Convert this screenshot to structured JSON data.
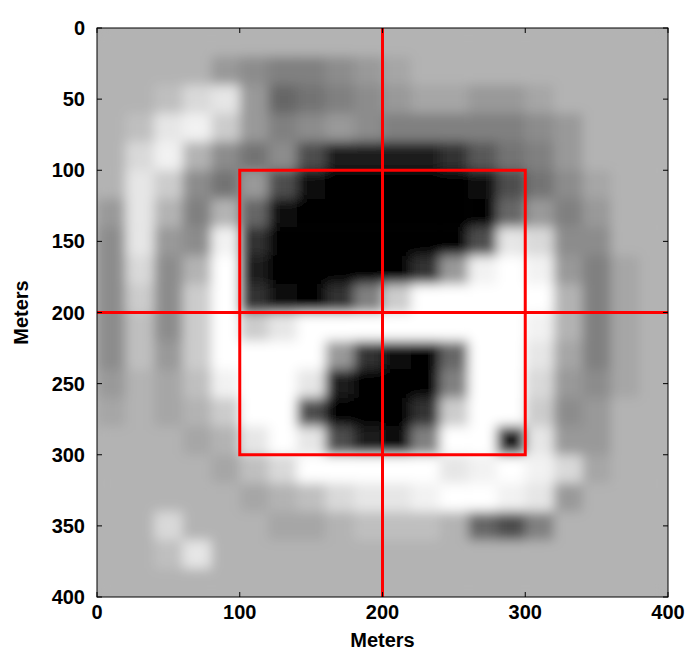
{
  "chart_data": {
    "type": "heatmap",
    "x_label": "Meters",
    "y_label": "Meters",
    "xlim": [
      0,
      400
    ],
    "ylim": [
      400,
      0
    ],
    "xticks": [
      0,
      100,
      200,
      300,
      400
    ],
    "yticks": [
      0,
      50,
      100,
      150,
      200,
      250,
      300,
      350,
      400
    ],
    "color": "gray",
    "color_range": [
      0,
      1
    ],
    "cells": [
      [
        0.7,
        0.7,
        0.7,
        0.7,
        0.7,
        0.7,
        0.7,
        0.7,
        0.7,
        0.7,
        0.7,
        0.7,
        0.7,
        0.7,
        0.7,
        0.7,
        0.7,
        0.7,
        0.7,
        0.7
      ],
      [
        0.7,
        0.7,
        0.7,
        0.7,
        0.6,
        0.55,
        0.5,
        0.5,
        0.55,
        0.6,
        0.65,
        0.7,
        0.7,
        0.7,
        0.7,
        0.7,
        0.7,
        0.7,
        0.7,
        0.7
      ],
      [
        0.7,
        0.7,
        0.75,
        0.85,
        0.9,
        0.6,
        0.4,
        0.45,
        0.5,
        0.55,
        0.6,
        0.65,
        0.65,
        0.6,
        0.6,
        0.65,
        0.7,
        0.7,
        0.7,
        0.7
      ],
      [
        0.7,
        0.75,
        0.9,
        0.95,
        0.8,
        0.6,
        0.5,
        0.55,
        0.6,
        0.55,
        0.5,
        0.5,
        0.5,
        0.5,
        0.5,
        0.55,
        0.6,
        0.7,
        0.7,
        0.7
      ],
      [
        0.7,
        0.85,
        0.95,
        0.7,
        0.55,
        0.45,
        0.55,
        0.3,
        0.1,
        0.1,
        0.1,
        0.1,
        0.2,
        0.35,
        0.45,
        0.5,
        0.6,
        0.7,
        0.7,
        0.7
      ],
      [
        0.7,
        0.9,
        0.8,
        0.55,
        0.45,
        0.6,
        0.3,
        0.05,
        0,
        0,
        0,
        0,
        0,
        0.05,
        0.3,
        0.45,
        0.55,
        0.65,
        0.7,
        0.7
      ],
      [
        0.6,
        0.9,
        0.7,
        0.5,
        0.7,
        0.4,
        0.05,
        0,
        0,
        0,
        0,
        0,
        0,
        0,
        0.4,
        0.6,
        0.5,
        0.6,
        0.7,
        0.7
      ],
      [
        0.55,
        0.9,
        0.6,
        0.55,
        0.95,
        0.2,
        0,
        0,
        0,
        0,
        0,
        0,
        0,
        0.3,
        0.9,
        0.85,
        0.55,
        0.55,
        0.7,
        0.7
      ],
      [
        0.55,
        0.85,
        0.55,
        0.7,
        1,
        0.1,
        0,
        0,
        0,
        0,
        0,
        0.2,
        0.6,
        0.95,
        1,
        0.95,
        0.6,
        0.5,
        0.65,
        0.7
      ],
      [
        0.55,
        0.8,
        0.55,
        0.8,
        1,
        0.2,
        0.05,
        0,
        0.2,
        0.5,
        0.8,
        1,
        1,
        1,
        1,
        1,
        0.7,
        0.5,
        0.65,
        0.7
      ],
      [
        0.55,
        0.75,
        0.55,
        0.8,
        1,
        0.8,
        0.9,
        1,
        1,
        1,
        1,
        1,
        1,
        1,
        1,
        0.95,
        0.7,
        0.5,
        0.65,
        0.7
      ],
      [
        0.55,
        0.75,
        0.6,
        0.8,
        1,
        1,
        1,
        1,
        0.6,
        0.2,
        0.05,
        0,
        0.4,
        1,
        1,
        0.9,
        0.65,
        0.5,
        0.65,
        0.7
      ],
      [
        0.6,
        0.7,
        0.65,
        0.75,
        0.95,
        1,
        1,
        0.9,
        0.1,
        0,
        0,
        0,
        0.5,
        1,
        1,
        0.85,
        0.6,
        0.55,
        0.65,
        0.7
      ],
      [
        0.65,
        0.7,
        0.65,
        0.7,
        0.8,
        1,
        1,
        0.3,
        0,
        0,
        0,
        0.2,
        0.8,
        1,
        1,
        0.8,
        0.55,
        0.6,
        0.7,
        0.7
      ],
      [
        0.7,
        0.7,
        0.7,
        0.65,
        0.7,
        0.9,
        1,
        0.9,
        0.3,
        0.1,
        0.05,
        0.5,
        1,
        1,
        0.1,
        0.9,
        0.6,
        0.6,
        0.7,
        0.7
      ],
      [
        0.7,
        0.7,
        0.7,
        0.7,
        0.65,
        0.75,
        0.85,
        1,
        1,
        1,
        1,
        1,
        0.9,
        0.95,
        1,
        0.95,
        0.85,
        0.65,
        0.7,
        0.7
      ],
      [
        0.7,
        0.7,
        0.7,
        0.7,
        0.7,
        0.65,
        0.7,
        0.75,
        0.85,
        0.9,
        0.9,
        0.95,
        1,
        1,
        0.95,
        0.9,
        0.6,
        0.7,
        0.7,
        0.7
      ],
      [
        0.7,
        0.7,
        0.85,
        0.7,
        0.7,
        0.7,
        0.65,
        0.65,
        0.7,
        0.75,
        0.75,
        0.75,
        0.7,
        0.4,
        0.3,
        0.5,
        0.7,
        0.7,
        0.7,
        0.7
      ],
      [
        0.7,
        0.7,
        0.75,
        0.9,
        0.7,
        0.7,
        0.7,
        0.7,
        0.7,
        0.7,
        0.7,
        0.7,
        0.7,
        0.7,
        0.7,
        0.7,
        0.7,
        0.7,
        0.7,
        0.7
      ],
      [
        0.7,
        0.7,
        0.7,
        0.7,
        0.7,
        0.7,
        0.7,
        0.7,
        0.7,
        0.7,
        0.7,
        0.7,
        0.7,
        0.7,
        0.7,
        0.7,
        0.7,
        0.7,
        0.7,
        0.7
      ]
    ],
    "overlay": {
      "color": "red",
      "vlines": [
        200
      ],
      "hlines": [
        200
      ],
      "rect": {
        "x": [
          100,
          300
        ],
        "y": [
          100,
          300
        ]
      }
    }
  }
}
